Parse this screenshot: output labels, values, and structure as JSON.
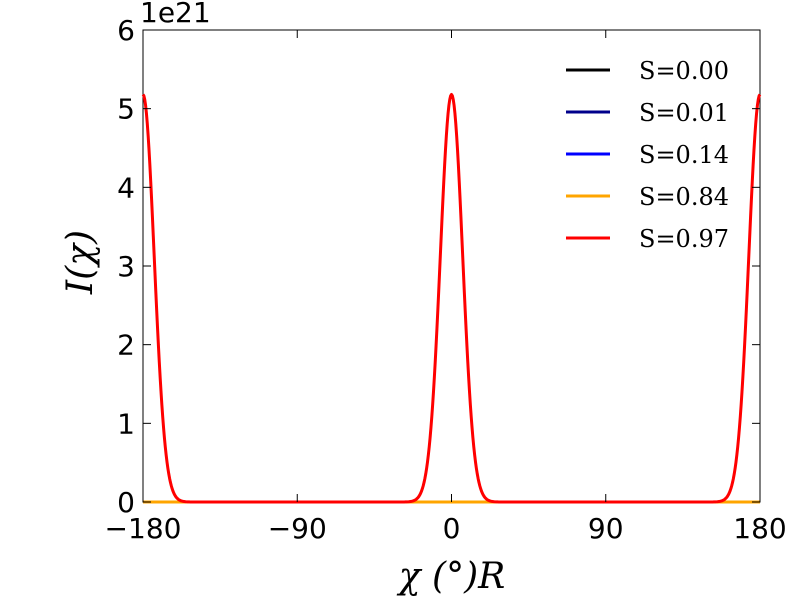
{
  "chart_data": {
    "type": "line",
    "xlabel": "χ (°)R",
    "ylabel": "I(χ)",
    "y_offset_label": "1e21",
    "xlim": [
      -180,
      180
    ],
    "ylim": [
      0,
      6
    ],
    "y_scale_multiplier": 1e+21,
    "x_ticks": [
      -180,
      -90,
      0,
      90,
      180
    ],
    "x_tick_labels": [
      "−180",
      "−90",
      "0",
      "90",
      "180"
    ],
    "y_ticks": [
      0,
      1,
      2,
      3,
      4,
      5,
      6
    ],
    "y_tick_labels": [
      "0",
      "1",
      "2",
      "3",
      "4",
      "5",
      "6"
    ],
    "grid": false,
    "legend_position": "top-right",
    "series": [
      {
        "name": "S=0.00",
        "color": "#000000",
        "peak": 0.0,
        "width_deg": 0
      },
      {
        "name": "S=0.01",
        "color": "#00008b",
        "peak": 0.0,
        "width_deg": 0
      },
      {
        "name": "S=0.14",
        "color": "#0000ff",
        "peak": 0.0,
        "width_deg": 0
      },
      {
        "name": "S=0.84",
        "color": "#ffa500",
        "peak": 0.0,
        "width_deg": 0
      },
      {
        "name": "S=0.97",
        "color": "#ff0000",
        "peak": 5.18,
        "width_deg": 6.5
      }
    ],
    "peak_centers_deg": [
      -180,
      0,
      180
    ]
  }
}
